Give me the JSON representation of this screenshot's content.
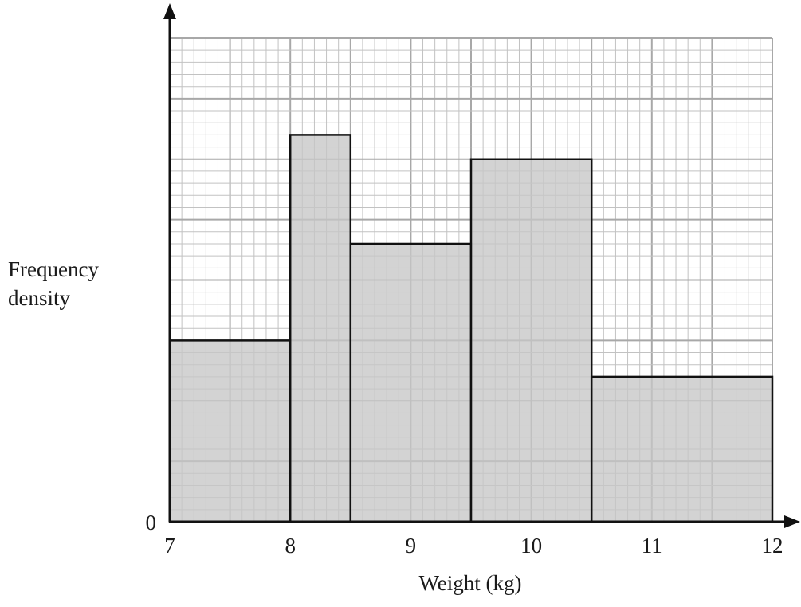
{
  "chart_data": {
    "type": "bar",
    "title": "",
    "xlabel": "Weight (kg)",
    "ylabel": [
      "Frequency",
      "density"
    ],
    "origin_label": "0",
    "x_ticks": [
      "7",
      "8",
      "9",
      "10",
      "11",
      "12"
    ],
    "xlim": [
      7,
      12
    ],
    "ylim": [
      0,
      8
    ],
    "grid": true,
    "y_tick_labels_shown": false,
    "bins": [
      {
        "from": 7,
        "to": 8,
        "frequency_density": 3.0
      },
      {
        "from": 8,
        "to": 8.5,
        "frequency_density": 6.4
      },
      {
        "from": 8.5,
        "to": 9.5,
        "frequency_density": 4.6
      },
      {
        "from": 9.5,
        "to": 10.5,
        "frequency_density": 6.0
      },
      {
        "from": 10.5,
        "to": 12,
        "frequency_density": 2.4
      }
    ],
    "colors": {
      "bar_fill": "#c6c6c6",
      "bar_stroke": "#111111",
      "grid_minor": "#c2c2c2",
      "grid_major": "#a8a8a8",
      "axis": "#111111"
    }
  }
}
